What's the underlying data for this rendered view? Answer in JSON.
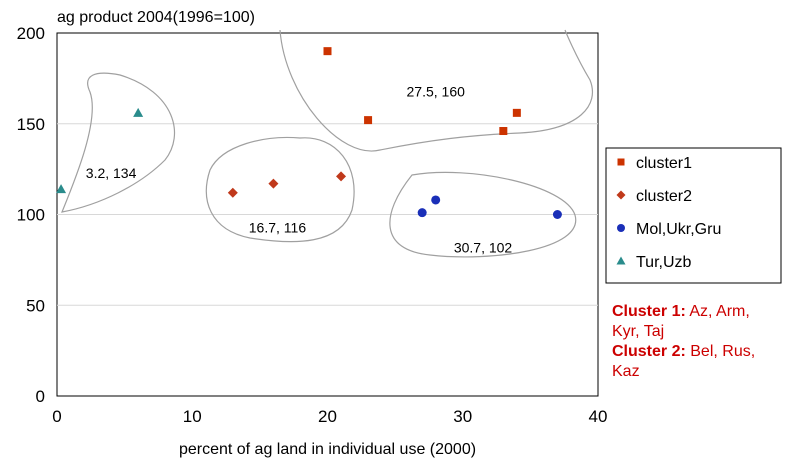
{
  "chart_data": {
    "type": "scatter",
    "title": "ag product 2004(1996=100)",
    "xlabel": "percent of ag land in individual use (2000)",
    "ylabel": "ag product 2004(1996=100)",
    "xlim": [
      0,
      40
    ],
    "ylim": [
      0,
      200
    ],
    "x_ticks": [
      0,
      10,
      20,
      30,
      40
    ],
    "y_ticks": [
      0,
      50,
      100,
      150,
      200
    ],
    "grid": "horizontal",
    "legend_position": "right",
    "series": [
      {
        "name": "cluster1",
        "marker": "square",
        "color": "#cc3300",
        "x": [
          20,
          23,
          33,
          34
        ],
        "y": [
          190,
          152,
          146,
          156
        ]
      },
      {
        "name": "cluster2",
        "marker": "diamond",
        "color": "#c0391b",
        "x": [
          13,
          16,
          21
        ],
        "y": [
          112,
          117,
          121
        ]
      },
      {
        "name": "Mol,Ukr,Gru",
        "marker": "circle",
        "color": "#1a2fb8",
        "x": [
          27,
          28,
          37
        ],
        "y": [
          101,
          108,
          100
        ]
      },
      {
        "name": "Tur,Uzb",
        "marker": "triangle",
        "color": "#2a8c8c",
        "x": [
          0.3,
          6
        ],
        "y": [
          114,
          156
        ]
      }
    ],
    "annotations": [
      {
        "text": "27.5, 160",
        "x": 28,
        "y": 165
      },
      {
        "text": "3.2, 134",
        "x": 4,
        "y": 120
      },
      {
        "text": "16.7, 116",
        "x": 16.3,
        "y": 90
      },
      {
        "text": "30.7, 102",
        "x": 31.5,
        "y": 79
      }
    ]
  },
  "notes": {
    "cluster1_label": "Cluster 1:",
    "cluster1_members_a": "Az, Arm,",
    "cluster1_members_b": "Kyr, Taj",
    "cluster2_label": "Cluster 2:",
    "cluster2_members_a": "Bel, Rus,",
    "cluster2_members_b": "Kaz",
    "color": "#cc0000"
  }
}
